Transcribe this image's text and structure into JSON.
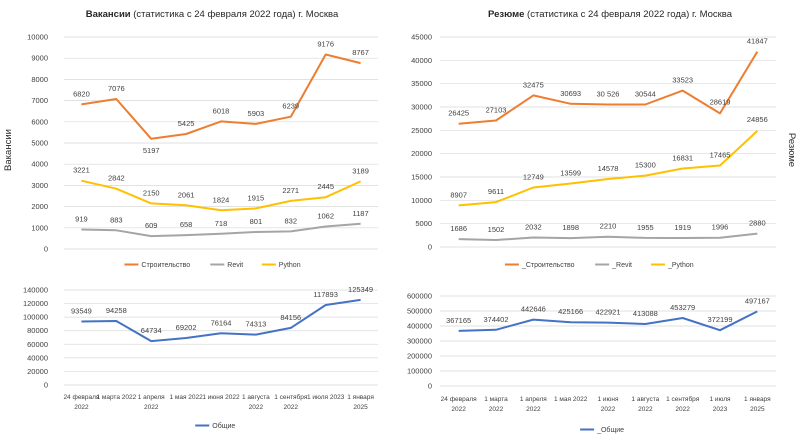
{
  "charts": {
    "left": {
      "title_bold": "Вакансии",
      "title_rest": " (статистика с 24 февраля 2022 года) г. Москва",
      "ylabel": "Вакансии"
    },
    "right": {
      "title_bold": "Резюме",
      "title_rest": " (статистика с 24 февраля 2022 года) г. Москва",
      "ylabel": "Резюме"
    }
  },
  "colors": {
    "orange": "#ed7d31",
    "gray": "#a5a5a5",
    "yellow": "#ffc000",
    "blue": "#4472c4",
    "grid": "#d9d9d9",
    "text": "#404040"
  },
  "chart_data": [
    {
      "id": "vac_top",
      "type": "line",
      "title": "Вакансии (статистика с 24 февраля 2022 года) г. Москва",
      "ylabel": "Вакансии",
      "ylim": [
        0,
        10000
      ],
      "yticks": [
        0,
        1000,
        2000,
        3000,
        4000,
        5000,
        6000,
        7000,
        8000,
        9000,
        10000
      ],
      "tick_labels": [
        "0",
        "1000",
        "2000",
        "3000",
        "4000",
        "5000",
        "6000",
        "7000",
        "8000",
        "9000",
        "10000"
      ],
      "grid": true,
      "legend": "bottom",
      "series": [
        {
          "name": "Строительство",
          "legend_label": "Строительство",
          "color": "#ed7d31",
          "values": [
            6820,
            7076,
            5197,
            5425,
            6018,
            5903,
            6239,
            9176,
            8767
          ],
          "labels": [
            "6820",
            "7076",
            "5197",
            "5425",
            "6018",
            "5903",
            "6239",
            "9176",
            "8767"
          ]
        },
        {
          "name": "Revit",
          "legend_label": "Revit",
          "color": "#a5a5a5",
          "values": [
            919,
            883,
            609,
            658,
            718,
            801,
            832,
            1062,
            1187
          ],
          "labels": [
            "919",
            "883",
            "609",
            "658",
            "718",
            "801",
            "832",
            "1062",
            "1187"
          ]
        },
        {
          "name": "Python",
          "legend_label": "Python",
          "color": "#ffc000",
          "values": [
            3221,
            2842,
            2150,
            2061,
            1824,
            1915,
            2271,
            2445,
            3189
          ],
          "labels": [
            "3221",
            "2842",
            "2150",
            "2061",
            "1824",
            "1915",
            "2271",
            "2445",
            "3189"
          ]
        }
      ]
    },
    {
      "id": "vac_bottom",
      "type": "line",
      "ylim": [
        0,
        140000
      ],
      "yticks": [
        0,
        20000,
        40000,
        60000,
        80000,
        100000,
        120000,
        140000
      ],
      "tick_labels": [
        "0",
        "20000",
        "40000",
        "60000",
        "80000",
        "100000",
        "120000",
        "140000"
      ],
      "grid": true,
      "legend": "bottom",
      "categories": [
        [
          "24 февраля",
          "2022"
        ],
        [
          "1 марта 2022"
        ],
        [
          "1 апреля",
          "2022"
        ],
        [
          "1 мая 2022"
        ],
        [
          "1 июня 2022"
        ],
        [
          "1 августа",
          "2022"
        ],
        [
          "1 сентября",
          "2022"
        ],
        [
          "1 июля 2023"
        ],
        [
          "1 января",
          "2025"
        ]
      ],
      "series": [
        {
          "name": "Общие",
          "legend_label": "Общие",
          "color": "#4472c4",
          "values": [
            93549,
            94258,
            64734,
            69202,
            76164,
            74313,
            84156,
            117893,
            125349
          ],
          "labels": [
            "93549",
            "94258",
            "64734",
            "69202",
            "76164",
            "74313",
            "84156",
            "117893",
            "125349"
          ]
        }
      ]
    },
    {
      "id": "res_top",
      "type": "line",
      "title": "Резюме (статистика с 24 февраля 2022 года) г. Москва",
      "ylabel": "Резюме",
      "ylim": [
        0,
        45000
      ],
      "yticks": [
        0,
        5000,
        10000,
        15000,
        20000,
        25000,
        30000,
        35000,
        40000,
        45000
      ],
      "tick_labels": [
        "0",
        "5000",
        "10000",
        "15000",
        "20000",
        "25000",
        "30000",
        "35000",
        "40000",
        "45000"
      ],
      "grid": true,
      "legend": "bottom",
      "series": [
        {
          "name": "Строительство",
          "legend_label": "_Строительство",
          "color": "#ed7d31",
          "values": [
            26425,
            27103,
            32475,
            30693,
            30526,
            30544,
            33523,
            28619,
            41847
          ],
          "labels": [
            "26425",
            "27103",
            "32475",
            "30693",
            "30 526",
            "30544",
            "33523",
            "28619",
            "41847"
          ]
        },
        {
          "name": "Revit",
          "legend_label": "_Revit",
          "color": "#a5a5a5",
          "values": [
            1686,
            1502,
            2032,
            1898,
            2210,
            1955,
            1919,
            1996,
            2880
          ],
          "labels": [
            "1686",
            "1502",
            "2032",
            "1898",
            "2210",
            "1955",
            "1919",
            "1996",
            "2880"
          ]
        },
        {
          "name": "Python",
          "legend_label": "_Python",
          "color": "#ffc000",
          "values": [
            8907,
            9611,
            12749,
            13599,
            14578,
            15300,
            16831,
            17465,
            24856
          ],
          "labels": [
            "8907",
            "9611",
            "12749",
            "13599",
            "14578",
            "15300",
            "16831",
            "17465",
            "24856"
          ]
        }
      ]
    },
    {
      "id": "res_bottom",
      "type": "line",
      "ylim": [
        0,
        600000
      ],
      "yticks": [
        0,
        100000,
        200000,
        300000,
        400000,
        500000,
        600000
      ],
      "tick_labels": [
        "0",
        "100000",
        "200000",
        "300000",
        "400000",
        "500000",
        "600000"
      ],
      "grid": true,
      "legend": "bottom",
      "categories": [
        [
          "24 февраля",
          "2022"
        ],
        [
          "1 марта",
          "2022"
        ],
        [
          "1 апреля",
          "2022"
        ],
        [
          "1 мая 2022"
        ],
        [
          "1 июня",
          "2022"
        ],
        [
          "1 августа",
          "2022"
        ],
        [
          "1 сентября",
          "2022"
        ],
        [
          "1 июля",
          "2023"
        ],
        [
          "1 января",
          "2025"
        ]
      ],
      "series": [
        {
          "name": "Общие",
          "legend_label": "_Общие",
          "color": "#4472c4",
          "values": [
            367165,
            374402,
            442646,
            425166,
            422921,
            413088,
            453279,
            372199,
            497167
          ],
          "labels": [
            "367165",
            "374402",
            "442646",
            "425166",
            "422921",
            "413088",
            "453279",
            "372199",
            "497167"
          ]
        }
      ]
    }
  ]
}
